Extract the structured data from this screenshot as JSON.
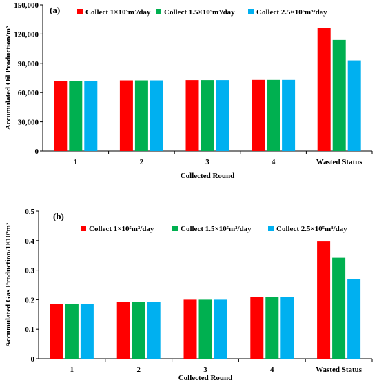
{
  "colors": {
    "series": [
      "#ff0000",
      "#00b050",
      "#00b0f0"
    ],
    "axis": "#000000"
  },
  "chart_data": [
    {
      "type": "bar",
      "panel_label": "(a)",
      "categories": [
        "1",
        "2",
        "3",
        "4",
        "Wasted Status"
      ],
      "xlabel": "Collected Round",
      "ylabel": "Accumulated Oil Production/m³",
      "ylim": [
        0,
        150000
      ],
      "yticks": [
        0,
        30000,
        60000,
        90000,
        120000,
        150000
      ],
      "ytick_labels": [
        "0",
        "30,000",
        "60,000",
        "90,000",
        "120,000",
        "150,000"
      ],
      "grid": false,
      "legend_position": "top",
      "series": [
        {
          "name": "Collect 1×10⁵m³/day",
          "values": [
            72000,
            72500,
            72800,
            73000,
            126000
          ]
        },
        {
          "name": "Collect 1.5×10⁵m³/day",
          "values": [
            72000,
            72500,
            72800,
            73000,
            114000
          ]
        },
        {
          "name": "Collect 2.5×10⁵m³/day",
          "values": [
            72000,
            72500,
            72800,
            73000,
            93000
          ]
        }
      ]
    },
    {
      "type": "bar",
      "panel_label": "(b)",
      "categories": [
        "1",
        "2",
        "3",
        "4",
        "Wasted Status"
      ],
      "xlabel": "Collected Round",
      "ylabel": "Accumulated Gas Production/1×10⁹m³",
      "ylim": [
        0,
        0.5
      ],
      "yticks": [
        0,
        0.1,
        0.2,
        0.3,
        0.4,
        0.5
      ],
      "ytick_labels": [
        "0",
        "0.1",
        "0.2",
        "0.3",
        "0.4",
        "0.5"
      ],
      "grid": false,
      "legend_position": "top",
      "series": [
        {
          "name": "Collect 1×10⁵m³/day",
          "values": [
            0.186,
            0.193,
            0.2,
            0.208,
            0.397
          ]
        },
        {
          "name": "Collect 1.5×10⁵m³/day",
          "values": [
            0.186,
            0.193,
            0.2,
            0.208,
            0.342
          ]
        },
        {
          "name": "Collect 2.5×10⁵m³/day",
          "values": [
            0.186,
            0.193,
            0.2,
            0.208,
            0.27
          ]
        }
      ]
    }
  ]
}
